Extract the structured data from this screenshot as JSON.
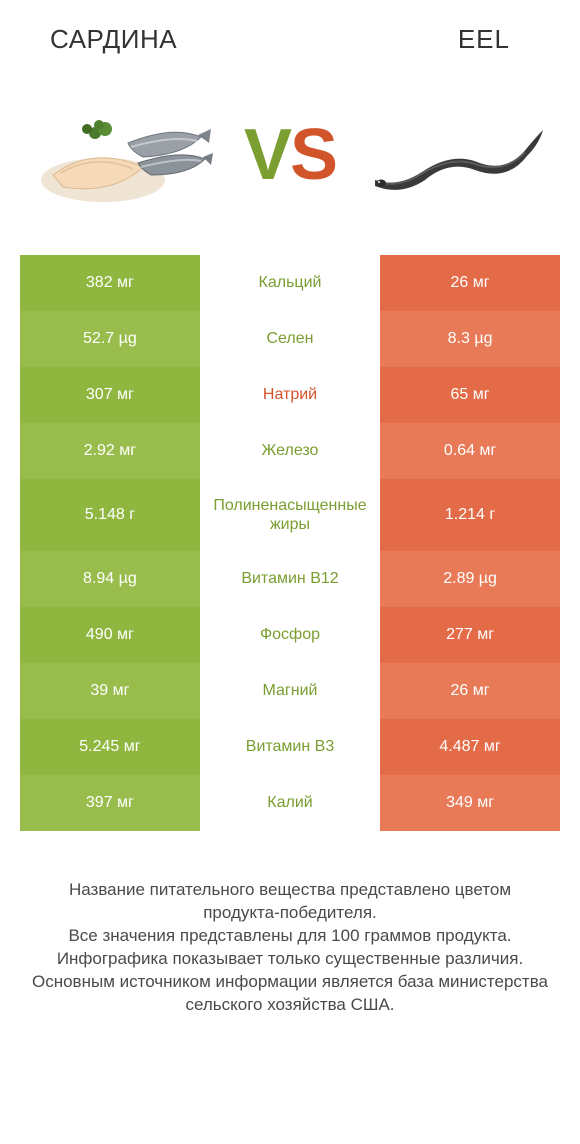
{
  "header": {
    "left": "САРДИНА",
    "right": "Eel"
  },
  "vs": {
    "v": "V",
    "s": "S"
  },
  "colors": {
    "left_bg_a": "#8fb63f",
    "left_bg_b": "#99bd4c",
    "right_bg_a": "#e46b47",
    "right_bg_b": "#e87a58",
    "mid_text_left": "#7a9e2f",
    "mid_text_right": "#d2542a",
    "vs_v": "#7a9e2f",
    "vs_s": "#d2542a",
    "footer": "#4a4a4a"
  },
  "rows": [
    {
      "left": "382 мг",
      "mid": "Кальций",
      "right": "26 мг",
      "winner": "left",
      "tall": false
    },
    {
      "left": "52.7 µg",
      "mid": "Селен",
      "right": "8.3 µg",
      "winner": "left",
      "tall": false
    },
    {
      "left": "307 мг",
      "mid": "Натрий",
      "right": "65 мг",
      "winner": "right",
      "tall": false
    },
    {
      "left": "2.92 мг",
      "mid": "Железо",
      "right": "0.64 мг",
      "winner": "left",
      "tall": false
    },
    {
      "left": "5.148 г",
      "mid": "Полиненасыщенные жиры",
      "right": "1.214 г",
      "winner": "left",
      "tall": true
    },
    {
      "left": "8.94 µg",
      "mid": "Витамин B12",
      "right": "2.89 µg",
      "winner": "left",
      "tall": false
    },
    {
      "left": "490 мг",
      "mid": "Фосфор",
      "right": "277 мг",
      "winner": "left",
      "tall": false
    },
    {
      "left": "39 мг",
      "mid": "Магний",
      "right": "26 мг",
      "winner": "left",
      "tall": false
    },
    {
      "left": "5.245 мг",
      "mid": "Витамин B3",
      "right": "4.487 мг",
      "winner": "left",
      "tall": false
    },
    {
      "left": "397 мг",
      "mid": "Калий",
      "right": "349 мг",
      "winner": "left",
      "tall": false
    }
  ],
  "footer": {
    "line1": "Название питательного вещества представлено цветом продукта-победителя.",
    "line2": "Все значения представлены для 100 граммов продукта.",
    "line3": "Инфографика показывает только существенные различия.",
    "line4": "Основным источником информации является база министерства сельского хозяйства США."
  }
}
